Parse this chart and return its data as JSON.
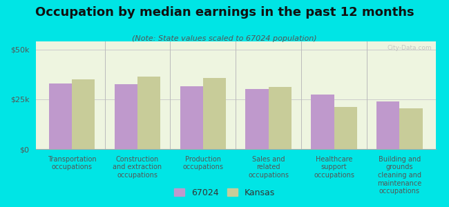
{
  "title": "Occupation by median earnings in the past 12 months",
  "subtitle": "(Note: State values scaled to 67024 population)",
  "categories": [
    "Transportation\noccupations",
    "Construction\nand extraction\noccupations",
    "Production\noccupations",
    "Sales and\nrelated\noccupations",
    "Healthcare\nsupport\noccupations",
    "Building and\ngrounds\ncleaning and\nmaintenance\noccupations"
  ],
  "values_67024": [
    33000,
    32500,
    31500,
    30000,
    27500,
    24000
  ],
  "values_kansas": [
    35000,
    36500,
    35500,
    31000,
    21000,
    20500
  ],
  "color_67024": "#bf99cc",
  "color_kansas": "#c8cc99",
  "background_color": "#00e5e5",
  "plot_bg": "#eef5e0",
  "yticks": [
    0,
    25000,
    50000
  ],
  "ytick_labels": [
    "$0",
    "$25k",
    "$50k"
  ],
  "ylim": [
    0,
    54000
  ],
  "legend_label_67024": "67024",
  "legend_label_kansas": "Kansas",
  "bar_width": 0.35,
  "watermark": "City-Data.com",
  "title_fontsize": 13,
  "subtitle_fontsize": 8,
  "tick_label_fontsize": 7,
  "axis_label_fontsize": 8,
  "legend_fontsize": 9
}
